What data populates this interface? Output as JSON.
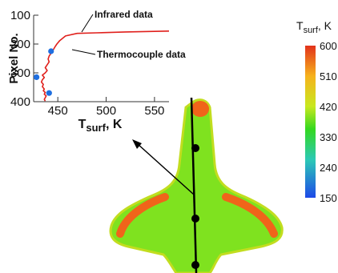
{
  "chart_data": {
    "type": "line",
    "xlabel_main": "T",
    "xlabel_sub": "surf",
    "xlabel_unit": ", K",
    "ylabel": "Pixel No.",
    "xlim": [
      425,
      565
    ],
    "ylim": [
      400,
      100
    ],
    "x_ticks": [
      "450",
      "500",
      "550"
    ],
    "y_ticks": [
      "100",
      "200",
      "300",
      "400"
    ],
    "series": [
      {
        "name": "Infrared data",
        "color": "#e0201c",
        "x": [
          565,
          520,
          490,
          470,
          458,
          452,
          449,
          447,
          445,
          443,
          441,
          440,
          441,
          439,
          437,
          439,
          437,
          434,
          436,
          434,
          433,
          435,
          434,
          436,
          435,
          437,
          436,
          438,
          437,
          436,
          437
        ],
        "y": [
          155,
          158,
          161,
          163,
          172,
          188,
          200,
          210,
          222,
          232,
          242,
          252,
          262,
          272,
          282,
          292,
          300,
          308,
          316,
          324,
          332,
          340,
          348,
          356,
          362,
          368,
          374,
          380,
          386,
          392,
          398
        ]
      },
      {
        "name": "Thermocouple data",
        "color": "#1f6fe0",
        "x": [
          443,
          428,
          441
        ],
        "y": [
          225,
          315,
          370
        ]
      }
    ],
    "annotations": {
      "infrared": "Infrared data",
      "thermocouple": "Thermocouple data"
    },
    "grid": false
  },
  "colorbar": {
    "title_main": "T",
    "title_sub": "surf",
    "title_unit": ", K",
    "ticks": [
      "600",
      "510",
      "420",
      "330",
      "240",
      "150"
    ],
    "values": [
      600,
      510,
      420,
      330,
      240,
      150
    ],
    "colors": [
      "#e2321b",
      "#f6b21d",
      "#33d81f",
      "#2cc9b6",
      "#1fa2f1",
      "#1d49e8"
    ]
  },
  "model": {
    "body_color": "#7fe21f",
    "hot_color": "#f0641a",
    "marker_color": "#000000",
    "probe_points_count_label": ""
  }
}
